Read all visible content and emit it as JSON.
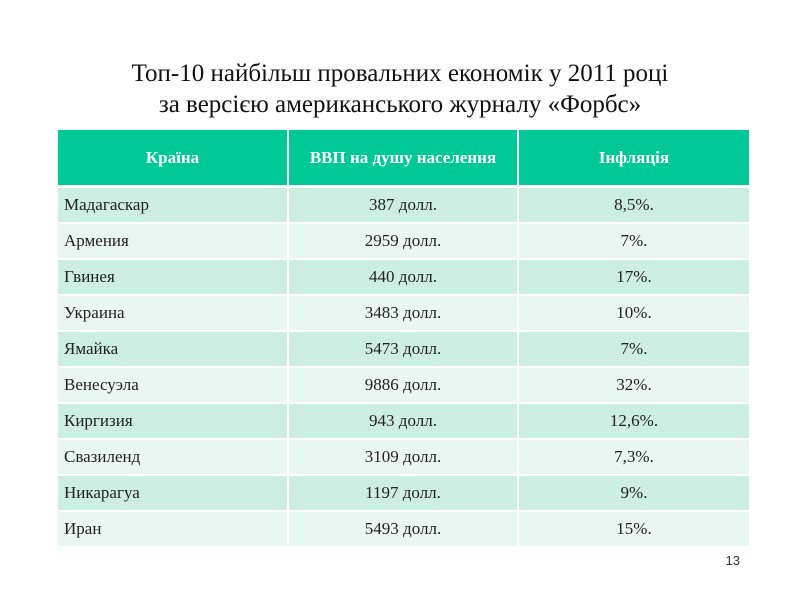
{
  "title": {
    "line1": "Топ-10 найбільш провальних економік у 2011 році",
    "line2": "за версією американського журналу «Форбс»"
  },
  "table": {
    "headers": [
      "Країна",
      "ВВП на душу населення",
      "Інфляція"
    ],
    "rows": [
      [
        "Мадагаскар",
        "387 долл.",
        "8,5%."
      ],
      [
        "Армения",
        "2959 долл.",
        "7%."
      ],
      [
        "Гвинея",
        "440 долл.",
        "17%."
      ],
      [
        "Украина",
        "3483 долл.",
        "10%."
      ],
      [
        "Ямайка",
        "5473 долл.",
        "7%."
      ],
      [
        "Венесуэла",
        "9886 долл.",
        "32%."
      ],
      [
        "Киргизия",
        "943 долл.",
        "12,6%."
      ],
      [
        "Свазиленд",
        "3109 долл.",
        "7,3%."
      ],
      [
        "Никарагуа",
        "1197 долл.",
        "9%."
      ],
      [
        "Иран",
        "5493 долл.",
        "15%."
      ]
    ]
  },
  "page_number": "13",
  "colors": {
    "header_bg": "#00c896",
    "row_odd": "#cdeee2",
    "row_even": "#e8f7f1"
  }
}
